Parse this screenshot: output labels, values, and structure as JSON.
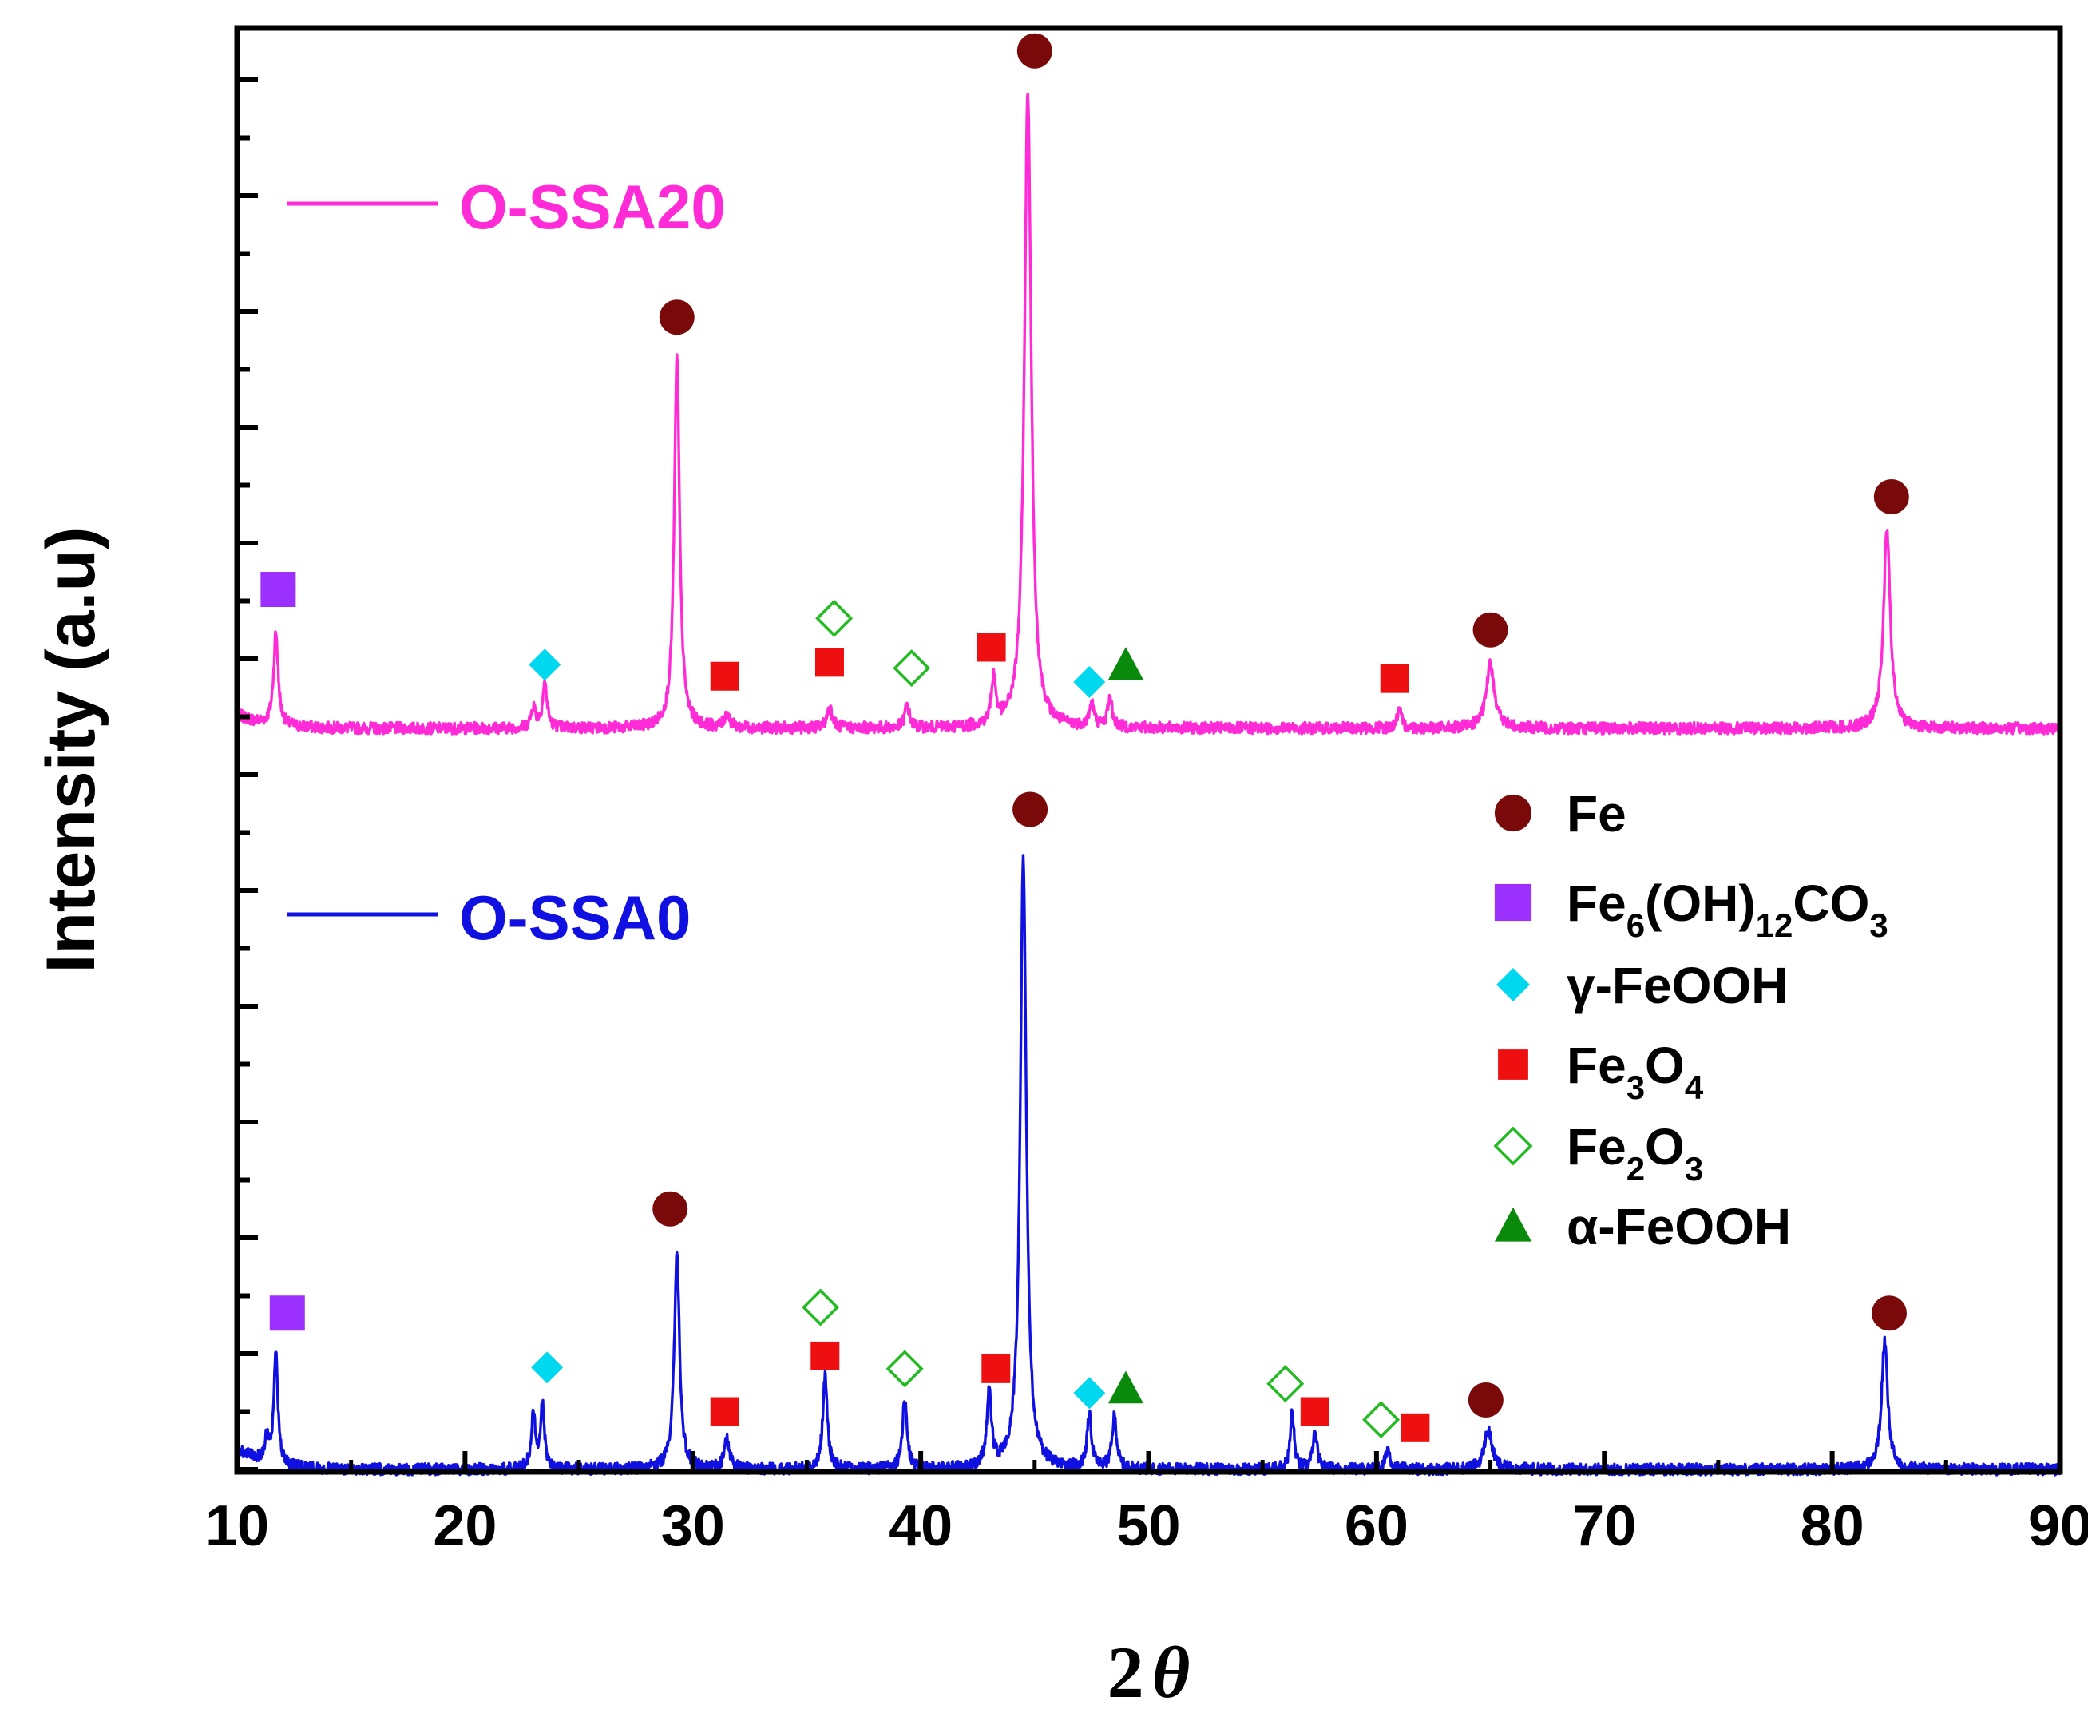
{
  "chart_data": {
    "type": "line",
    "title": "",
    "xlabel": "2",
    "xlabel_symbol": "θ",
    "ylabel": "Intensity (a.u)",
    "xlim": [
      10,
      90
    ],
    "ylim": [
      0,
      12
    ],
    "x_ticks": [
      "10",
      "20",
      "30",
      "40",
      "50",
      "60",
      "70",
      "80",
      "90"
    ],
    "y_minor_tick_step": 0.5,
    "grid": false,
    "series": [
      {
        "name": "O-SSA20",
        "color": "#ff2bd6",
        "baseline": 6.4,
        "noise": 0.05,
        "start_extra": 0.12,
        "peaks": [
          {
            "x": 11.7,
            "h": 0.8,
            "w": 0.12
          },
          {
            "x": 23.0,
            "h": 0.18,
            "w": 0.12
          },
          {
            "x": 23.5,
            "h": 0.38,
            "w": 0.12
          },
          {
            "x": 29.3,
            "h": 3.2,
            "w": 0.14
          },
          {
            "x": 31.5,
            "h": 0.12,
            "w": 0.14
          },
          {
            "x": 36.0,
            "h": 0.18,
            "w": 0.14
          },
          {
            "x": 39.4,
            "h": 0.2,
            "w": 0.12
          },
          {
            "x": 43.2,
            "h": 0.4,
            "w": 0.12
          },
          {
            "x": 44.7,
            "h": 5.5,
            "w": 0.18
          },
          {
            "x": 47.5,
            "h": 0.2,
            "w": 0.12
          },
          {
            "x": 48.3,
            "h": 0.25,
            "w": 0.12
          },
          {
            "x": 61.0,
            "h": 0.15,
            "w": 0.12
          },
          {
            "x": 65.0,
            "h": 0.55,
            "w": 0.22
          },
          {
            "x": 82.4,
            "h": 1.7,
            "w": 0.18
          }
        ]
      },
      {
        "name": "O-SSA0",
        "color": "#1010e0",
        "baseline": 0.0,
        "noise": 0.05,
        "start_extra": 0.18,
        "peaks": [
          {
            "x": 11.3,
            "h": 0.2,
            "w": 0.12
          },
          {
            "x": 11.7,
            "h": 1.0,
            "w": 0.1
          },
          {
            "x": 23.0,
            "h": 0.45,
            "w": 0.12
          },
          {
            "x": 23.4,
            "h": 0.55,
            "w": 0.1
          },
          {
            "x": 29.3,
            "h": 1.85,
            "w": 0.14
          },
          {
            "x": 31.5,
            "h": 0.25,
            "w": 0.14
          },
          {
            "x": 35.8,
            "h": 0.8,
            "w": 0.12
          },
          {
            "x": 39.3,
            "h": 0.6,
            "w": 0.12
          },
          {
            "x": 43.0,
            "h": 0.65,
            "w": 0.12
          },
          {
            "x": 44.5,
            "h": 5.3,
            "w": 0.16
          },
          {
            "x": 47.4,
            "h": 0.45,
            "w": 0.12
          },
          {
            "x": 48.5,
            "h": 0.45,
            "w": 0.12
          },
          {
            "x": 56.3,
            "h": 0.5,
            "w": 0.1
          },
          {
            "x": 57.3,
            "h": 0.3,
            "w": 0.12
          },
          {
            "x": 60.5,
            "h": 0.18,
            "w": 0.12
          },
          {
            "x": 64.9,
            "h": 0.35,
            "w": 0.2
          },
          {
            "x": 82.3,
            "h": 1.1,
            "w": 0.16
          }
        ]
      }
    ],
    "markers": [
      {
        "series": "O-SSA20",
        "phase": "Fe",
        "x": 45.0,
        "y": 12.25
      },
      {
        "series": "O-SSA20",
        "phase": "Fe",
        "x": 29.3,
        "y": 9.95
      },
      {
        "series": "O-SSA20",
        "phase": "Fe",
        "x": 82.6,
        "y": 8.4
      },
      {
        "series": "O-SSA20",
        "phase": "Fe",
        "x": 65.0,
        "y": 7.25
      },
      {
        "series": "O-SSA20",
        "phase": "Fe6(OH)12CO3",
        "x": 11.8,
        "y": 7.6
      },
      {
        "series": "O-SSA20",
        "phase": "γ-FeOOH",
        "x": 23.5,
        "y": 6.95
      },
      {
        "series": "O-SSA20",
        "phase": "γ-FeOOH",
        "x": 47.4,
        "y": 6.8
      },
      {
        "series": "O-SSA20",
        "phase": "Fe3O4",
        "x": 31.4,
        "y": 6.85
      },
      {
        "series": "O-SSA20",
        "phase": "Fe3O4",
        "x": 36.0,
        "y": 6.97
      },
      {
        "series": "O-SSA20",
        "phase": "Fe3O4",
        "x": 43.1,
        "y": 7.1
      },
      {
        "series": "O-SSA20",
        "phase": "Fe3O4",
        "x": 60.8,
        "y": 6.83
      },
      {
        "series": "O-SSA20",
        "phase": "Fe2O3",
        "x": 36.2,
        "y": 7.35
      },
      {
        "series": "O-SSA20",
        "phase": "Fe2O3",
        "x": 39.6,
        "y": 6.92
      },
      {
        "series": "O-SSA20",
        "phase": "α-FeOOH",
        "x": 49.0,
        "y": 6.95
      },
      {
        "series": "O-SSA0",
        "phase": "Fe",
        "x": 44.8,
        "y": 5.7
      },
      {
        "series": "O-SSA0",
        "phase": "Fe",
        "x": 29.0,
        "y": 2.25
      },
      {
        "series": "O-SSA0",
        "phase": "Fe",
        "x": 82.5,
        "y": 1.35
      },
      {
        "series": "O-SSA0",
        "phase": "Fe",
        "x": 64.8,
        "y": 0.6
      },
      {
        "series": "O-SSA0",
        "phase": "Fe6(OH)12CO3",
        "x": 12.2,
        "y": 1.35
      },
      {
        "series": "O-SSA0",
        "phase": "γ-FeOOH",
        "x": 23.6,
        "y": 0.88
      },
      {
        "series": "O-SSA0",
        "phase": "γ-FeOOH",
        "x": 47.4,
        "y": 0.66
      },
      {
        "series": "O-SSA0",
        "phase": "Fe3O4",
        "x": 31.4,
        "y": 0.5
      },
      {
        "series": "O-SSA0",
        "phase": "Fe3O4",
        "x": 35.8,
        "y": 0.98
      },
      {
        "series": "O-SSA0",
        "phase": "Fe3O4",
        "x": 43.3,
        "y": 0.87
      },
      {
        "series": "O-SSA0",
        "phase": "Fe3O4",
        "x": 57.3,
        "y": 0.5
      },
      {
        "series": "O-SSA0",
        "phase": "Fe3O4",
        "x": 61.7,
        "y": 0.36
      },
      {
        "series": "O-SSA0",
        "phase": "Fe2O3",
        "x": 35.6,
        "y": 1.4
      },
      {
        "series": "O-SSA0",
        "phase": "Fe2O3",
        "x": 39.3,
        "y": 0.87
      },
      {
        "series": "O-SSA0",
        "phase": "Fe2O3",
        "x": 56.0,
        "y": 0.74
      },
      {
        "series": "O-SSA0",
        "phase": "Fe2O3",
        "x": 60.2,
        "y": 0.43
      },
      {
        "series": "O-SSA0",
        "phase": "α-FeOOH",
        "x": 49.0,
        "y": 0.7
      }
    ],
    "legend": {
      "placement": "right-middle",
      "entries": [
        {
          "phase": "Fe",
          "marker": "circle",
          "color": "#7a0a0a",
          "main": "Fe",
          "parts": [
            [
              "Fe",
              ""
            ]
          ]
        },
        {
          "phase": "Fe6(OH)12CO3",
          "marker": "square",
          "color": "#9b30ff",
          "main": "Fe6(OH)12CO3",
          "parts": [
            [
              "Fe",
              ""
            ],
            [
              "6",
              "sub"
            ],
            [
              "(OH)",
              ""
            ],
            [
              "12",
              "sub"
            ],
            [
              "CO",
              ""
            ],
            [
              "3",
              "sub"
            ]
          ]
        },
        {
          "phase": "γ-FeOOH",
          "marker": "diamond",
          "color": "#00d8f0",
          "main": "γ-FeOOH",
          "parts": [
            [
              "γ-FeOOH",
              ""
            ]
          ]
        },
        {
          "phase": "Fe3O4",
          "marker": "square-small",
          "color": "#ee1010",
          "main": "Fe3O4",
          "parts": [
            [
              "Fe",
              ""
            ],
            [
              "3",
              "sub"
            ],
            [
              "O",
              ""
            ],
            [
              "4",
              "sub"
            ]
          ]
        },
        {
          "phase": "Fe2O3",
          "marker": "diamond-open",
          "color": "#22bb22",
          "main": "Fe2O3",
          "parts": [
            [
              "Fe",
              ""
            ],
            [
              "2",
              "sub"
            ],
            [
              "O",
              ""
            ],
            [
              "3",
              "sub"
            ]
          ]
        },
        {
          "phase": "α-FeOOH",
          "marker": "triangle",
          "color": "#0a8a0a",
          "main": "α-FeOOH",
          "parts": [
            [
              "α-FeOOH",
              ""
            ]
          ]
        }
      ]
    },
    "series_labels": [
      {
        "text": "O-SSA20",
        "color": "#ff2bd6"
      },
      {
        "text": "O-SSA0",
        "color": "#1010e0"
      }
    ]
  }
}
